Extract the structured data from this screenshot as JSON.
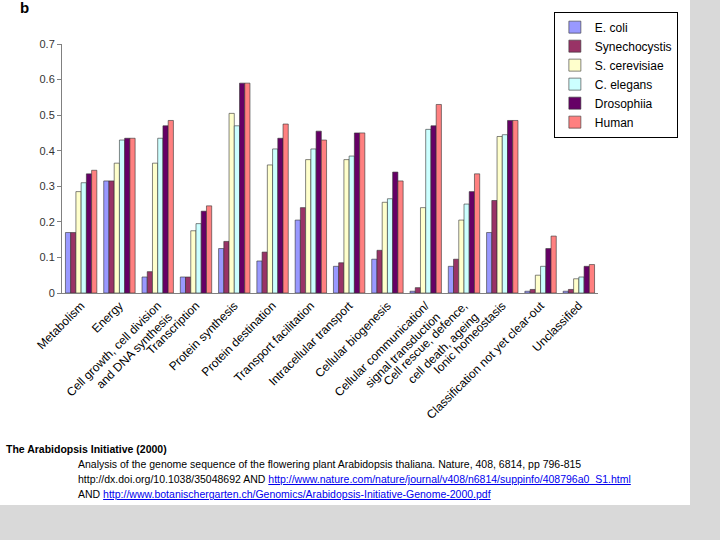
{
  "chart_data": {
    "type": "bar",
    "annotations": [
      "b"
    ],
    "categories": [
      "Metabolism",
      "Energy",
      "Cell growth, cell division\nand DNA synthesis",
      "Transcription",
      "Protein synthesis",
      "Protein destination",
      "Transport facilitation",
      "Intracellular transport",
      "Cellular biogenesis",
      "Cellular communication/\nsignal transduction",
      "Cell rescue, defence,\ncell death, ageing",
      "Ionic homeostasis",
      "Classification not yet clear-out",
      "Unclassified"
    ],
    "series": [
      {
        "name": "E. coli",
        "color": "#9999ff",
        "values": [
          0.17,
          0.315,
          0.045,
          0.045,
          0.125,
          0.09,
          0.205,
          0.075,
          0.095,
          0.005,
          0.075,
          0.17,
          0.005,
          0.005
        ]
      },
      {
        "name": "Synechocystis",
        "color": "#993366",
        "values": [
          0.17,
          0.315,
          0.06,
          0.045,
          0.145,
          0.115,
          0.24,
          0.085,
          0.12,
          0.015,
          0.095,
          0.26,
          0.01,
          0.01
        ]
      },
      {
        "name": "S. cerevisiae",
        "color": "#ffffcc",
        "values": [
          0.285,
          0.365,
          0.365,
          0.175,
          0.505,
          0.36,
          0.375,
          0.375,
          0.255,
          0.24,
          0.205,
          0.44,
          0.05,
          0.04
        ]
      },
      {
        "name": "C. elegans",
        "color": "#ccffff",
        "values": [
          0.31,
          0.43,
          0.435,
          0.195,
          0.47,
          0.405,
          0.405,
          0.385,
          0.265,
          0.46,
          0.25,
          0.445,
          0.075,
          0.045
        ]
      },
      {
        "name": "Drosophiia",
        "color": "#660066",
        "values": [
          0.335,
          0.435,
          0.47,
          0.23,
          0.59,
          0.435,
          0.455,
          0.45,
          0.34,
          0.47,
          0.285,
          0.485,
          0.125,
          0.075
        ]
      },
      {
        "name": "Human",
        "color": "#ff8080",
        "values": [
          0.345,
          0.435,
          0.485,
          0.245,
          0.59,
          0.475,
          0.43,
          0.45,
          0.315,
          0.53,
          0.335,
          0.485,
          0.16,
          0.08
        ]
      }
    ],
    "ylim": [
      0,
      0.7
    ],
    "yticks": [
      0,
      0.1,
      0.2,
      0.3,
      0.4,
      0.5,
      0.6,
      0.7
    ],
    "grid": false,
    "legend": "upper right"
  },
  "caption": {
    "heading": "The Arabidopsis Initiative (2000)",
    "lines": [
      [
        "Analysis of the genome sequence of the flowering plant Arabidopsis thaliana. Nature, 408, 6814, pp  796-815"
      ],
      [
        "http://dx.doi.org/10.1038/35048692 AND ",
        {
          "link": "http://www.nature.com/nature/journal/v408/n6814/suppinfo/408796a0_S1.html"
        }
      ],
      [
        "AND ",
        {
          "link": "http://www.botanischergarten.ch/Genomics/Arabidopsis-Initiative-Genome-2000.pdf"
        }
      ]
    ]
  }
}
